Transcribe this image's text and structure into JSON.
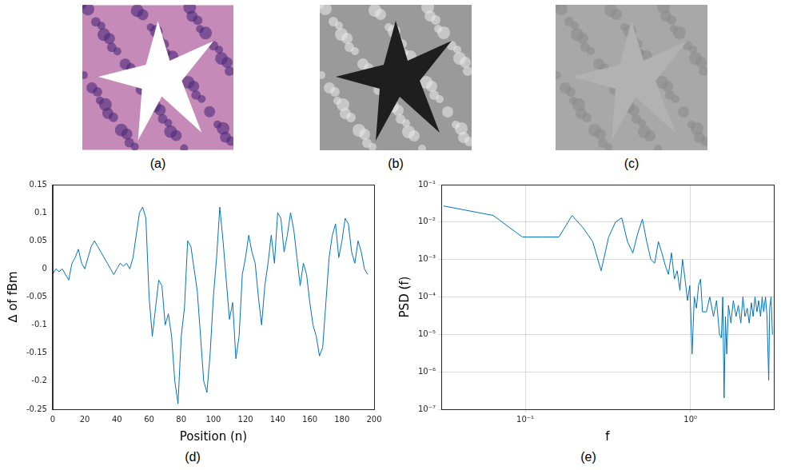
{
  "images": [
    {
      "label": "(a)"
    },
    {
      "label": "(b)"
    },
    {
      "label": "(c)"
    }
  ],
  "chart_data": [
    {
      "panel": "(d)",
      "type": "line",
      "x_label": "Position (n)",
      "y_label": "∆ of fBm",
      "color": "#0072bd",
      "grid": false,
      "x": [
        0,
        2,
        4,
        6,
        8,
        10,
        12,
        14,
        16,
        18,
        20,
        22,
        24,
        26,
        28,
        30,
        32,
        34,
        36,
        38,
        40,
        42,
        44,
        46,
        48,
        50,
        52,
        54,
        56,
        58,
        60,
        62,
        64,
        66,
        68,
        70,
        72,
        74,
        76,
        78,
        80,
        82,
        84,
        86,
        88,
        90,
        92,
        94,
        96,
        98,
        100,
        102,
        104,
        106,
        108,
        110,
        112,
        114,
        116,
        118,
        120,
        122,
        124,
        126,
        128,
        130,
        132,
        134,
        136,
        138,
        140,
        142,
        144,
        146,
        148,
        150,
        152,
        154,
        156,
        158,
        160,
        162,
        164,
        166,
        168,
        170,
        172,
        174,
        176,
        178,
        180,
        182,
        184,
        186,
        188,
        190,
        192,
        194,
        196
      ],
      "values": [
        -0.01,
        0,
        -0.005,
        0,
        -0.01,
        -0.02,
        0.01,
        0.02,
        0.035,
        0.01,
        0,
        0.02,
        0.04,
        0.05,
        0.04,
        0.03,
        0.02,
        0.01,
        0,
        -0.01,
        0,
        0.01,
        0.005,
        0.01,
        0,
        0.02,
        0.06,
        0.1,
        0.11,
        0.09,
        -0.05,
        -0.12,
        -0.07,
        -0.02,
        -0.03,
        -0.1,
        -0.08,
        -0.12,
        -0.2,
        -0.24,
        -0.12,
        -0.07,
        0.05,
        0.04,
        0,
        -0.04,
        -0.12,
        -0.2,
        -0.22,
        -0.15,
        -0.05,
        0.02,
        0.11,
        0.05,
        -0.02,
        -0.09,
        -0.06,
        -0.16,
        -0.12,
        -0.01,
        0.02,
        0.06,
        0.03,
        0.01,
        -0.05,
        -0.1,
        -0.03,
        0.01,
        0.06,
        0.01,
        0.1,
        0.09,
        0.03,
        0.06,
        0.1,
        0.07,
        0.02,
        -0.03,
        0.01,
        -0.01,
        -0.06,
        -0.1,
        -0.12,
        -0.155,
        -0.14,
        -0.06,
        0.02,
        0.06,
        0.08,
        0.02,
        0.05,
        0.09,
        0.08,
        0.03,
        0.01,
        0.05,
        0.03,
        0,
        -0.01
      ],
      "xlim": [
        0,
        200
      ],
      "xticks": [
        0,
        20,
        40,
        60,
        80,
        100,
        120,
        140,
        160,
        180,
        200
      ],
      "ylim": [
        -0.25,
        0.15
      ],
      "yticks": [
        -0.25,
        -0.2,
        -0.15,
        -0.1,
        -0.05,
        0,
        0.05,
        0.1,
        0.15
      ]
    },
    {
      "panel": "(e)",
      "type": "line",
      "log": true,
      "x_label": "f",
      "y_label": "PSD (f)",
      "color": "#0072bd",
      "grid": true,
      "x": [
        0.032,
        0.064,
        0.096,
        0.128,
        0.16,
        0.192,
        0.224,
        0.256,
        0.288,
        0.32,
        0.352,
        0.384,
        0.416,
        0.448,
        0.48,
        0.512,
        0.544,
        0.576,
        0.608,
        0.64,
        0.672,
        0.704,
        0.736,
        0.768,
        0.8,
        0.832,
        0.864,
        0.896,
        0.928,
        0.96,
        0.992,
        1.024,
        1.056,
        1.088,
        1.12,
        1.152,
        1.184,
        1.25,
        1.31,
        1.38,
        1.44,
        1.5,
        1.54,
        1.57,
        1.6,
        1.63,
        1.66,
        1.7,
        1.76,
        1.82,
        1.89,
        1.95,
        2.02,
        2.08,
        2.14,
        2.21,
        2.27,
        2.34,
        2.4,
        2.46,
        2.53,
        2.59,
        2.66,
        2.72,
        2.78,
        2.85,
        2.91,
        2.98,
        3.02,
        3.08,
        3.14
      ],
      "values": [
        0.027,
        0.015,
        0.004,
        0.004,
        0.004,
        0.015,
        0.007,
        0.003,
        0.0005,
        0.004,
        0.01,
        0.013,
        0.003,
        0.0015,
        0.005,
        0.012,
        0.003,
        0.001,
        0.0008,
        0.003,
        0.0015,
        0.0007,
        0.0004,
        0.0015,
        0.0003,
        0.0005,
        0.00015,
        0.001,
        0.0003,
        8e-05,
        0.0002,
        3e-06,
        0.0001,
        5e-05,
        0.0002,
        0.0003,
        4e-05,
        4e-05,
        0.0001,
        3e-05,
        8e-05,
        1e-05,
        8e-06,
        0.0001,
        2e-07,
        3e-05,
        3e-06,
        6e-05,
        2e-05,
        8e-05,
        3e-05,
        6e-05,
        2e-05,
        0.0001,
        3e-05,
        5e-05,
        2e-05,
        7e-05,
        3e-05,
        0.0001,
        4e-05,
        8e-05,
        3e-05,
        0.0001,
        4e-05,
        0.0001,
        3e-05,
        6e-07,
        5e-05,
        0.0001,
        1e-05
      ],
      "xlim": [
        0.031,
        3.2
      ],
      "xticks": [
        {
          "value": 0.1,
          "label": "10⁻¹"
        },
        {
          "value": 1,
          "label": "10⁰"
        }
      ],
      "ylim": [
        1e-07,
        0.1
      ],
      "yticks": [
        {
          "value": 1e-07,
          "label": "10⁻⁷"
        },
        {
          "value": 1e-06,
          "label": "10⁻⁶"
        },
        {
          "value": 1e-05,
          "label": "10⁻⁵"
        },
        {
          "value": 0.0001,
          "label": "10⁻⁴"
        },
        {
          "value": 0.001,
          "label": "10⁻³"
        },
        {
          "value": 0.01,
          "label": "10⁻²"
        },
        {
          "value": 0.1,
          "label": "10⁻¹"
        }
      ]
    }
  ]
}
